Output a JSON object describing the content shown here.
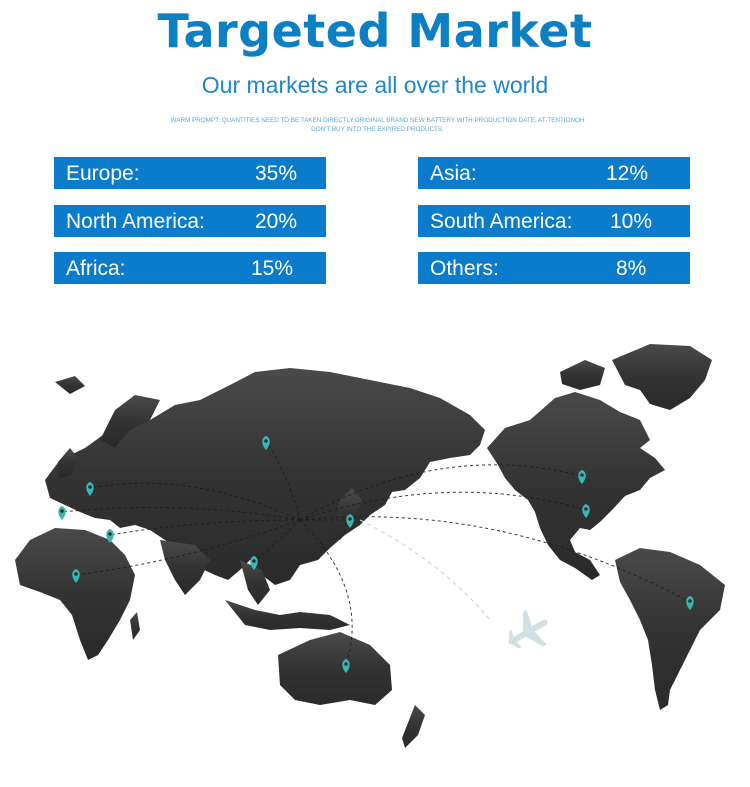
{
  "title": "Targeted Market",
  "subtitle": "Our markets are all over the world",
  "prompt": "Warm prompt: quantities need to be taken directly.original brand new battery with production date, at-tentionoh don't buy into the expired products.",
  "markets": [
    {
      "name": "Europe:",
      "share": "35%"
    },
    {
      "name": "Asia:",
      "share": "12%"
    },
    {
      "name": "North America:",
      "share": "20%"
    },
    {
      "name": "South America:",
      "share": "10%"
    },
    {
      "name": "Africa:",
      "share": "15%"
    },
    {
      "name": "Others:",
      "share": "8%"
    }
  ],
  "colors": {
    "accent": "#0b7bcb",
    "land": "#3a3a3a",
    "pin": "#37b8b4"
  },
  "map": {
    "pin_icon": "map-pin-icon",
    "plane_icon": "airplane-icon"
  }
}
